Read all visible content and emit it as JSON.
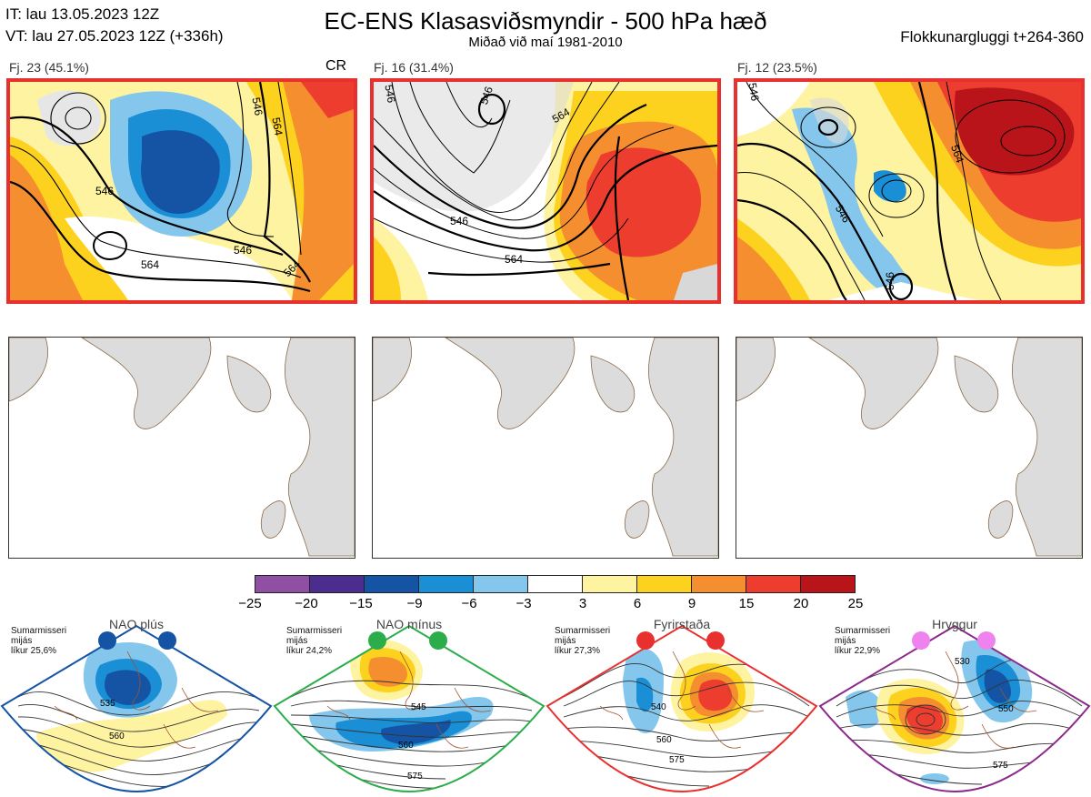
{
  "header": {
    "it_line": "IT: lau 13.05.2023 12Z",
    "vt_line": "VT: lau 27.05.2023 12Z  (+336h)",
    "title": "EC-ENS Klasasviðsmyndir - 500 hPa hæð",
    "subtitle": "Miðað við maí 1981-2010",
    "window": "Flokkunargluggi t+264-360"
  },
  "clusters": [
    {
      "label": "Fj. 23 (45.1%)",
      "extra": "CR",
      "contours": [
        "546",
        "546",
        "546",
        "564",
        "564",
        "564"
      ]
    },
    {
      "label": "Fj. 16 (31.4%)",
      "extra": "",
      "contours": [
        "546",
        "546",
        "546",
        "564",
        "564"
      ]
    },
    {
      "label": "Fj. 12 (23.5%)",
      "extra": "",
      "contours": [
        "546",
        "546",
        "546",
        "564"
      ]
    }
  ],
  "colorbar": {
    "colors": [
      "#8f4fa3",
      "#4b2d8f",
      "#1554a4",
      "#1a8fd6",
      "#85c7ec",
      "#ffffff",
      "#fef3a1",
      "#fdd21f",
      "#f48e2f",
      "#ec3d2f",
      "#b9141a"
    ],
    "ticks": [
      "−25",
      "−20",
      "−15",
      "−9",
      "−6",
      "−3",
      "3",
      "6",
      "9",
      "15",
      "20",
      "25"
    ]
  },
  "regimes": [
    {
      "name": "NAO plús",
      "season": "Sumarmisseri",
      "word": "mijás",
      "prob": "líkur 25,6%",
      "dot_color": "#1554a4",
      "border_color": "#1554a4",
      "labels": [
        "535",
        "560"
      ]
    },
    {
      "name": "NAO mínus",
      "season": "Sumarmisseri",
      "word": "mijás",
      "prob": "líkur 24,2%",
      "dot_color": "#2aad4a",
      "border_color": "#2aad4a",
      "labels": [
        "545",
        "560",
        "575"
      ]
    },
    {
      "name": "Fyrirstaða",
      "season": "Sumarmisseri",
      "word": "mijás",
      "prob": "líkur 27,3%",
      "dot_color": "#e8312f",
      "border_color": "#e8312f",
      "labels": [
        "540",
        "560",
        "575"
      ]
    },
    {
      "name": "Hryggur",
      "season": "Sumarmisseri",
      "word": "mijás",
      "prob": "líkur 22,9%",
      "dot_color": "#ee82ee",
      "border_color": "#8b2a8b",
      "labels": [
        "530",
        "550",
        "575"
      ]
    }
  ]
}
